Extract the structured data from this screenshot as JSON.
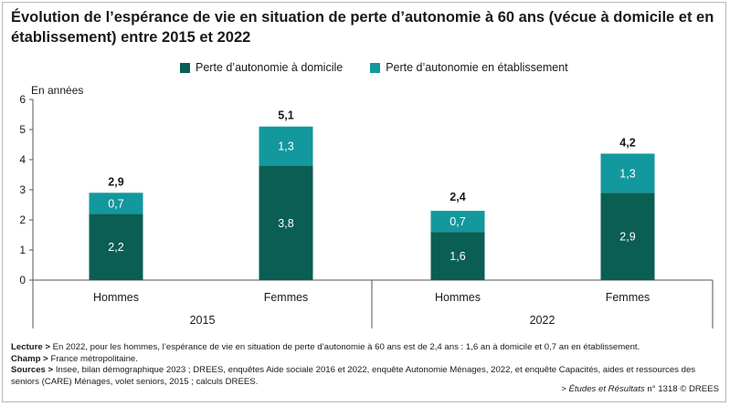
{
  "title": "Évolution de l’espérance de vie en situation de perte d’autonomie à 60 ans (vécue à domicile et en établissement) entre 2015 et 2022",
  "unit_label": "En années",
  "colors": {
    "domicile": "#0b5e54",
    "etablissement": "#13989d",
    "axis": "#555555"
  },
  "chart_data": {
    "type": "bar",
    "stacked": true,
    "title": "Évolution de l’espérance de vie en situation de perte d’autonomie à 60 ans (vécue à domicile et en établissement) entre 2015 et 2022",
    "ylabel": "En années",
    "ylim": [
      0,
      6
    ],
    "yticks": [
      "0",
      "1",
      "2",
      "3",
      "4",
      "5",
      "6"
    ],
    "grid": false,
    "legend_position": "top",
    "groups": [
      "2015",
      "2022"
    ],
    "categories": [
      "Hommes",
      "Femmes",
      "Hommes",
      "Femmes"
    ],
    "group_of_category": [
      "2015",
      "2015",
      "2022",
      "2022"
    ],
    "series": [
      {
        "name": "Perte d’autonomie à domicile",
        "values": [
          2.2,
          3.8,
          1.6,
          2.9
        ],
        "labels": [
          "2,2",
          "3,8",
          "1,6",
          "2,9"
        ]
      },
      {
        "name": "Perte d’autonomie en établissement",
        "values": [
          0.7,
          1.3,
          0.7,
          1.3
        ],
        "labels": [
          "0,7",
          "1,3",
          "0,7",
          "1,3"
        ]
      }
    ],
    "totals": [
      2.9,
      5.1,
      2.4,
      4.2
    ],
    "total_labels": [
      "2,9",
      "5,1",
      "2,4",
      "4,2"
    ]
  },
  "notes": {
    "lecture_label": "Lecture >",
    "lecture_text": "En 2022, pour les hommes, l’espérance de vie en situation de perte d’autonomie à 60 ans est de 2,4 ans : 1,6 an à domicile et 0,7 an en établissement.",
    "champ_label": "Champ >",
    "champ_text": "France métropolitaine.",
    "sources_label": "Sources >",
    "sources_text": "Insee, bilan démographique 2023 ; DREES, enquêtes Aide sociale 2016 et 2022, enquête Autonomie Ménages, 2022, et enquête Capacités, aides et ressources des seniors (CARE) Ménages, volet seniors, 2015 ; calculs DREES."
  },
  "source_ref": {
    "prefix": ">",
    "publication": "Études et Résultats",
    "suffix": "n° 1318 © DREES"
  }
}
